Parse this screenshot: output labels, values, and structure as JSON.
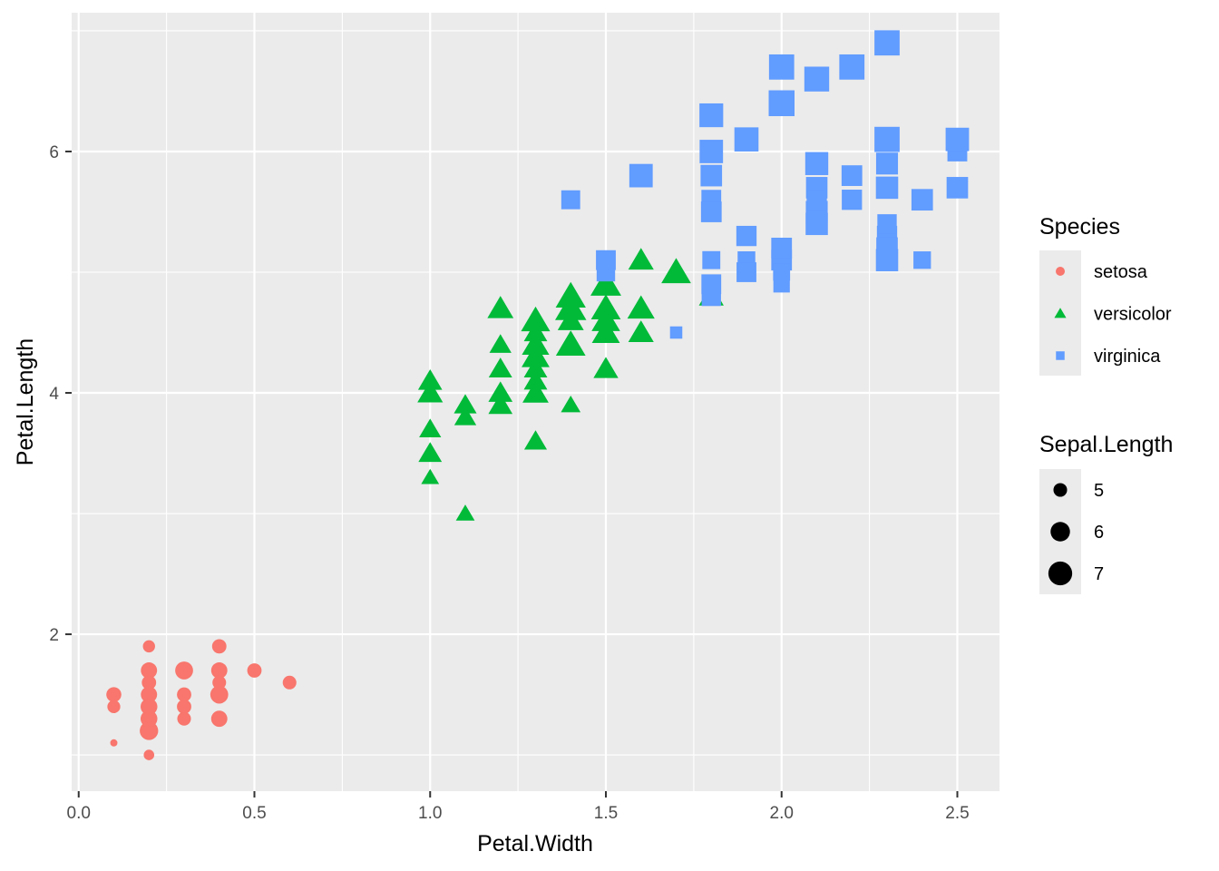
{
  "chart_data": {
    "type": "scatter",
    "title": "",
    "xlabel": "Petal.Width",
    "ylabel": "Petal.Length",
    "xlim": [
      -0.02,
      2.62
    ],
    "ylim": [
      0.7,
      7.15
    ],
    "x_ticks": [
      0.0,
      0.5,
      1.0,
      1.5,
      2.0,
      2.5
    ],
    "x_tick_labels": [
      "0.0",
      "0.5",
      "1.0",
      "1.5",
      "2.0",
      "2.5"
    ],
    "y_ticks": [
      2,
      4,
      6
    ],
    "y_tick_labels": [
      "2",
      "4",
      "6"
    ],
    "grid": true,
    "legend_placement": "right",
    "colors": {
      "setosa": "#F8766D",
      "versicolor": "#00BA38",
      "virginica": "#619CFF",
      "panel_bg": "#EBEBEB",
      "legend_key_bg": "#EBEBEB"
    },
    "legends": {
      "species": {
        "title": "Species",
        "entries": [
          {
            "label": "setosa",
            "shape": "circle"
          },
          {
            "label": "versicolor",
            "shape": "triangle"
          },
          {
            "label": "virginica",
            "shape": "square"
          }
        ]
      },
      "size": {
        "title": "Sepal.Length",
        "entries": [
          {
            "label": "5",
            "value": 5
          },
          {
            "label": "6",
            "value": 6
          },
          {
            "label": "7",
            "value": 7
          }
        ]
      }
    },
    "size_range": [
      4.3,
      7.9
    ],
    "series": [
      {
        "name": "setosa",
        "shape": "circle",
        "points": [
          {
            "x": 0.2,
            "y": 1.4,
            "size": 5.1
          },
          {
            "x": 0.2,
            "y": 1.4,
            "size": 4.9
          },
          {
            "x": 0.2,
            "y": 1.3,
            "size": 4.7
          },
          {
            "x": 0.2,
            "y": 1.5,
            "size": 4.6
          },
          {
            "x": 0.2,
            "y": 1.4,
            "size": 5.0
          },
          {
            "x": 0.4,
            "y": 1.7,
            "size": 5.4
          },
          {
            "x": 0.3,
            "y": 1.4,
            "size": 4.6
          },
          {
            "x": 0.2,
            "y": 1.5,
            "size": 5.0
          },
          {
            "x": 0.2,
            "y": 1.4,
            "size": 4.4
          },
          {
            "x": 0.1,
            "y": 1.5,
            "size": 4.9
          },
          {
            "x": 0.2,
            "y": 1.5,
            "size": 5.4
          },
          {
            "x": 0.2,
            "y": 1.6,
            "size": 4.8
          },
          {
            "x": 0.1,
            "y": 1.4,
            "size": 4.8
          },
          {
            "x": 0.1,
            "y": 1.1,
            "size": 4.3
          },
          {
            "x": 0.2,
            "y": 1.2,
            "size": 5.8
          },
          {
            "x": 0.4,
            "y": 1.5,
            "size": 5.7
          },
          {
            "x": 0.4,
            "y": 1.3,
            "size": 5.4
          },
          {
            "x": 0.3,
            "y": 1.4,
            "size": 5.1
          },
          {
            "x": 0.3,
            "y": 1.7,
            "size": 5.7
          },
          {
            "x": 0.3,
            "y": 1.5,
            "size": 5.1
          },
          {
            "x": 0.2,
            "y": 1.7,
            "size": 5.4
          },
          {
            "x": 0.4,
            "y": 1.5,
            "size": 5.1
          },
          {
            "x": 0.2,
            "y": 1.0,
            "size": 4.6
          },
          {
            "x": 0.5,
            "y": 1.7,
            "size": 5.1
          },
          {
            "x": 0.2,
            "y": 1.9,
            "size": 4.8
          },
          {
            "x": 0.2,
            "y": 1.6,
            "size": 5.0
          },
          {
            "x": 0.4,
            "y": 1.6,
            "size": 5.0
          },
          {
            "x": 0.2,
            "y": 1.5,
            "size": 5.2
          },
          {
            "x": 0.2,
            "y": 1.4,
            "size": 5.2
          },
          {
            "x": 0.2,
            "y": 1.6,
            "size": 4.7
          },
          {
            "x": 0.2,
            "y": 1.6,
            "size": 4.8
          },
          {
            "x": 0.4,
            "y": 1.5,
            "size": 5.4
          },
          {
            "x": 0.1,
            "y": 1.5,
            "size": 5.2
          },
          {
            "x": 0.2,
            "y": 1.4,
            "size": 5.5
          },
          {
            "x": 0.2,
            "y": 1.5,
            "size": 4.9
          },
          {
            "x": 0.2,
            "y": 1.2,
            "size": 5.0
          },
          {
            "x": 0.2,
            "y": 1.3,
            "size": 5.5
          },
          {
            "x": 0.1,
            "y": 1.4,
            "size": 4.9
          },
          {
            "x": 0.2,
            "y": 1.3,
            "size": 4.4
          },
          {
            "x": 0.2,
            "y": 1.5,
            "size": 5.1
          },
          {
            "x": 0.3,
            "y": 1.3,
            "size": 5.0
          },
          {
            "x": 0.3,
            "y": 1.3,
            "size": 4.5
          },
          {
            "x": 0.2,
            "y": 1.3,
            "size": 4.4
          },
          {
            "x": 0.6,
            "y": 1.6,
            "size": 5.0
          },
          {
            "x": 0.4,
            "y": 1.9,
            "size": 5.1
          },
          {
            "x": 0.3,
            "y": 1.4,
            "size": 4.8
          },
          {
            "x": 0.2,
            "y": 1.6,
            "size": 5.1
          },
          {
            "x": 0.2,
            "y": 1.4,
            "size": 4.6
          },
          {
            "x": 0.2,
            "y": 1.5,
            "size": 5.3
          },
          {
            "x": 0.2,
            "y": 1.4,
            "size": 5.0
          }
        ]
      },
      {
        "name": "versicolor",
        "shape": "triangle",
        "points": [
          {
            "x": 1.4,
            "y": 4.7,
            "size": 7.0
          },
          {
            "x": 1.5,
            "y": 4.5,
            "size": 6.4
          },
          {
            "x": 1.5,
            "y": 4.9,
            "size": 6.9
          },
          {
            "x": 1.3,
            "y": 4.0,
            "size": 5.5
          },
          {
            "x": 1.5,
            "y": 4.6,
            "size": 6.5
          },
          {
            "x": 1.3,
            "y": 4.5,
            "size": 5.7
          },
          {
            "x": 1.6,
            "y": 4.7,
            "size": 6.3
          },
          {
            "x": 1.0,
            "y": 3.3,
            "size": 4.9
          },
          {
            "x": 1.3,
            "y": 4.6,
            "size": 6.6
          },
          {
            "x": 1.4,
            "y": 3.9,
            "size": 5.2
          },
          {
            "x": 1.0,
            "y": 3.5,
            "size": 5.0
          },
          {
            "x": 1.5,
            "y": 4.2,
            "size": 5.9
          },
          {
            "x": 1.0,
            "y": 4.0,
            "size": 6.0
          },
          {
            "x": 1.4,
            "y": 4.7,
            "size": 6.1
          },
          {
            "x": 1.3,
            "y": 3.6,
            "size": 5.6
          },
          {
            "x": 1.4,
            "y": 4.4,
            "size": 6.7
          },
          {
            "x": 1.5,
            "y": 4.5,
            "size": 5.6
          },
          {
            "x": 1.0,
            "y": 4.1,
            "size": 5.8
          },
          {
            "x": 1.5,
            "y": 4.5,
            "size": 6.2
          },
          {
            "x": 1.1,
            "y": 3.9,
            "size": 5.6
          },
          {
            "x": 1.8,
            "y": 4.8,
            "size": 5.9
          },
          {
            "x": 1.3,
            "y": 4.0,
            "size": 6.1
          },
          {
            "x": 1.5,
            "y": 4.9,
            "size": 6.3
          },
          {
            "x": 1.2,
            "y": 4.7,
            "size": 6.1
          },
          {
            "x": 1.3,
            "y": 4.3,
            "size": 6.4
          },
          {
            "x": 1.4,
            "y": 4.4,
            "size": 6.6
          },
          {
            "x": 1.4,
            "y": 4.8,
            "size": 6.8
          },
          {
            "x": 1.7,
            "y": 5.0,
            "size": 6.7
          },
          {
            "x": 1.5,
            "y": 4.5,
            "size": 6.0
          },
          {
            "x": 1.0,
            "y": 3.5,
            "size": 5.7
          },
          {
            "x": 1.1,
            "y": 3.8,
            "size": 5.5
          },
          {
            "x": 1.0,
            "y": 3.7,
            "size": 5.5
          },
          {
            "x": 1.2,
            "y": 3.9,
            "size": 5.8
          },
          {
            "x": 1.6,
            "y": 5.1,
            "size": 6.0
          },
          {
            "x": 1.5,
            "y": 4.5,
            "size": 5.4
          },
          {
            "x": 1.6,
            "y": 4.5,
            "size": 6.0
          },
          {
            "x": 1.5,
            "y": 4.7,
            "size": 6.7
          },
          {
            "x": 1.3,
            "y": 4.4,
            "size": 6.3
          },
          {
            "x": 1.3,
            "y": 4.1,
            "size": 5.6
          },
          {
            "x": 1.3,
            "y": 4.0,
            "size": 5.5
          },
          {
            "x": 1.2,
            "y": 4.4,
            "size": 5.5
          },
          {
            "x": 1.4,
            "y": 4.6,
            "size": 6.1
          },
          {
            "x": 1.2,
            "y": 4.0,
            "size": 5.8
          },
          {
            "x": 1.0,
            "y": 3.3,
            "size": 5.0
          },
          {
            "x": 1.3,
            "y": 4.2,
            "size": 5.6
          },
          {
            "x": 1.2,
            "y": 4.2,
            "size": 5.7
          },
          {
            "x": 1.3,
            "y": 4.2,
            "size": 5.7
          },
          {
            "x": 1.3,
            "y": 4.3,
            "size": 6.2
          },
          {
            "x": 1.1,
            "y": 3.0,
            "size": 5.1
          },
          {
            "x": 1.3,
            "y": 4.1,
            "size": 5.7
          }
        ]
      },
      {
        "name": "virginica",
        "shape": "square",
        "points": [
          {
            "x": 2.5,
            "y": 6.0,
            "size": 6.3
          },
          {
            "x": 1.9,
            "y": 5.1,
            "size": 5.8
          },
          {
            "x": 2.1,
            "y": 5.9,
            "size": 7.1
          },
          {
            "x": 1.8,
            "y": 5.6,
            "size": 6.3
          },
          {
            "x": 2.2,
            "y": 5.8,
            "size": 6.5
          },
          {
            "x": 2.1,
            "y": 6.6,
            "size": 7.6
          },
          {
            "x": 1.7,
            "y": 4.5,
            "size": 4.9
          },
          {
            "x": 1.8,
            "y": 6.3,
            "size": 7.3
          },
          {
            "x": 1.8,
            "y": 5.8,
            "size": 6.7
          },
          {
            "x": 2.5,
            "y": 6.1,
            "size": 7.2
          },
          {
            "x": 2.0,
            "y": 5.1,
            "size": 6.5
          },
          {
            "x": 1.9,
            "y": 5.3,
            "size": 6.4
          },
          {
            "x": 2.1,
            "y": 5.5,
            "size": 6.8
          },
          {
            "x": 2.0,
            "y": 5.0,
            "size": 5.7
          },
          {
            "x": 2.4,
            "y": 5.1,
            "size": 5.8
          },
          {
            "x": 2.3,
            "y": 5.3,
            "size": 6.4
          },
          {
            "x": 1.8,
            "y": 5.5,
            "size": 6.5
          },
          {
            "x": 2.2,
            "y": 6.7,
            "size": 7.7
          },
          {
            "x": 2.3,
            "y": 6.9,
            "size": 7.7
          },
          {
            "x": 1.5,
            "y": 5.0,
            "size": 6.0
          },
          {
            "x": 2.3,
            "y": 5.7,
            "size": 6.9
          },
          {
            "x": 2.0,
            "y": 4.9,
            "size": 5.6
          },
          {
            "x": 2.0,
            "y": 6.7,
            "size": 7.7
          },
          {
            "x": 1.8,
            "y": 4.9,
            "size": 6.3
          },
          {
            "x": 2.1,
            "y": 5.7,
            "size": 6.7
          },
          {
            "x": 1.8,
            "y": 6.0,
            "size": 7.2
          },
          {
            "x": 1.8,
            "y": 4.8,
            "size": 6.2
          },
          {
            "x": 1.8,
            "y": 4.9,
            "size": 6.1
          },
          {
            "x": 2.1,
            "y": 5.6,
            "size": 6.4
          },
          {
            "x": 1.6,
            "y": 5.8,
            "size": 7.2
          },
          {
            "x": 1.9,
            "y": 6.1,
            "size": 7.4
          },
          {
            "x": 2.0,
            "y": 6.4,
            "size": 7.9
          },
          {
            "x": 2.2,
            "y": 5.6,
            "size": 6.4
          },
          {
            "x": 1.5,
            "y": 5.1,
            "size": 6.3
          },
          {
            "x": 1.4,
            "y": 5.6,
            "size": 6.1
          },
          {
            "x": 2.3,
            "y": 6.1,
            "size": 7.7
          },
          {
            "x": 2.4,
            "y": 5.6,
            "size": 6.3
          },
          {
            "x": 1.8,
            "y": 5.5,
            "size": 6.4
          },
          {
            "x": 1.8,
            "y": 4.8,
            "size": 6.0
          },
          {
            "x": 2.1,
            "y": 5.4,
            "size": 6.9
          },
          {
            "x": 2.4,
            "y": 5.6,
            "size": 6.7
          },
          {
            "x": 2.3,
            "y": 5.1,
            "size": 6.9
          },
          {
            "x": 1.9,
            "y": 5.1,
            "size": 5.8
          },
          {
            "x": 2.3,
            "y": 5.9,
            "size": 6.8
          },
          {
            "x": 2.5,
            "y": 5.7,
            "size": 6.7
          },
          {
            "x": 2.3,
            "y": 5.2,
            "size": 6.7
          },
          {
            "x": 1.9,
            "y": 5.0,
            "size": 6.3
          },
          {
            "x": 2.0,
            "y": 5.2,
            "size": 6.5
          },
          {
            "x": 2.3,
            "y": 5.4,
            "size": 6.2
          },
          {
            "x": 1.8,
            "y": 5.1,
            "size": 5.9
          }
        ]
      }
    ]
  }
}
